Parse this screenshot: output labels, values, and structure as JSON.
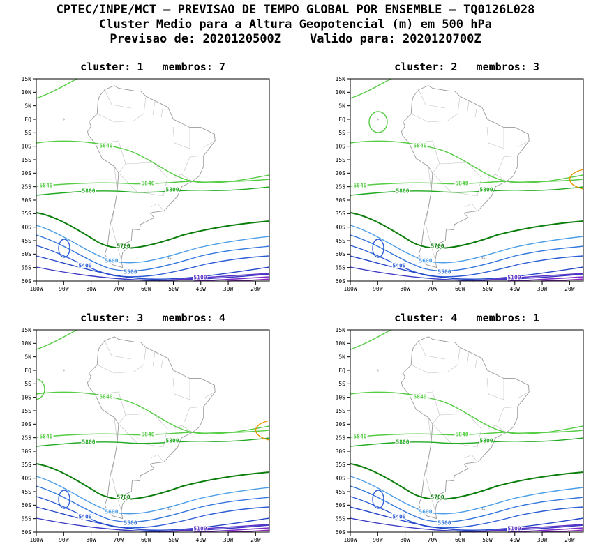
{
  "header": {
    "line1": "CPTEC/INPE/MCT — PREVISAO DE TEMPO GLOBAL POR ENSEMBLE — TQ0126L028",
    "line2": "Cluster Medio para a Altura Geopotencial (m) em 500 hPa",
    "line3": "Previsao de: 2020120500Z    Valido para: 2020120700Z"
  },
  "panels": [
    {
      "title": "cluster: 1   membros: 7",
      "cluster": "1",
      "membros": "7",
      "features": []
    },
    {
      "title": "cluster: 2   membros: 3",
      "cluster": "2",
      "membros": "3",
      "features": [
        "green_loop",
        "orange_arc"
      ]
    },
    {
      "title": "cluster: 3   membros: 4",
      "cluster": "3",
      "membros": "4",
      "features": [
        "green_edge_arc",
        "orange_arc"
      ]
    },
    {
      "title": "cluster: 4   membros: 1",
      "cluster": "4",
      "membros": "1",
      "features": []
    }
  ],
  "axes": {
    "lat": [
      "15N",
      "10N",
      "5N",
      "EQ",
      "5S",
      "10S",
      "15S",
      "20S",
      "25S",
      "30S",
      "35S",
      "40S",
      "45S",
      "50S",
      "55S",
      "60S"
    ],
    "lon": [
      "100W",
      "90W",
      "80W",
      "70W",
      "60W",
      "50W",
      "40W",
      "30W",
      "20W"
    ]
  },
  "contours": {
    "5840": "#55cc44",
    "5800": "#22aa22",
    "5700": "#0b7d0b",
    "5600": "#4d9ee8",
    "5500": "#3377dd",
    "5400": "#2b5cd6",
    "5300": "#2547c8",
    "5200": "#3d3bc4",
    "5100": "#5c33c8",
    "unlabeled_low_1": "#7c2cc8",
    "unlabeled_low_2": "#8e27bd",
    "high_edge": "#e89500"
  },
  "map_colors": {
    "coastline": "#9a9a9a",
    "borders": "#c0c0c0",
    "frame": "#000000"
  },
  "chart_data": {
    "type": "contour",
    "institution": "CPTEC/INPE/MCT",
    "product": "PREVISAO DE TEMPO GLOBAL POR ENSEMBLE — TQ0126L028",
    "title": "Cluster Medio para a Altura Geopotencial (m) em 500 hPa",
    "forecast_init": "2020120500Z",
    "forecast_valid": "2020120700Z",
    "map_extent": {
      "lon_range": [
        "100W",
        "15W"
      ],
      "lat_range": [
        "15N",
        "60S"
      ]
    },
    "panels": [
      {
        "cluster": 1,
        "membros": 7
      },
      {
        "cluster": 2,
        "membros": 3
      },
      {
        "cluster": 3,
        "membros": 4
      },
      {
        "cluster": 4,
        "membros": 1
      }
    ],
    "labeled_contour_levels_m": [
      5840,
      5800,
      5700,
      5600,
      5500,
      5400,
      5100
    ],
    "pattern": "Geopotential height decreases from about 5840 m near the equator to below 5100 m south of 55S, with a closed low near 90W 47S in every cluster."
  }
}
